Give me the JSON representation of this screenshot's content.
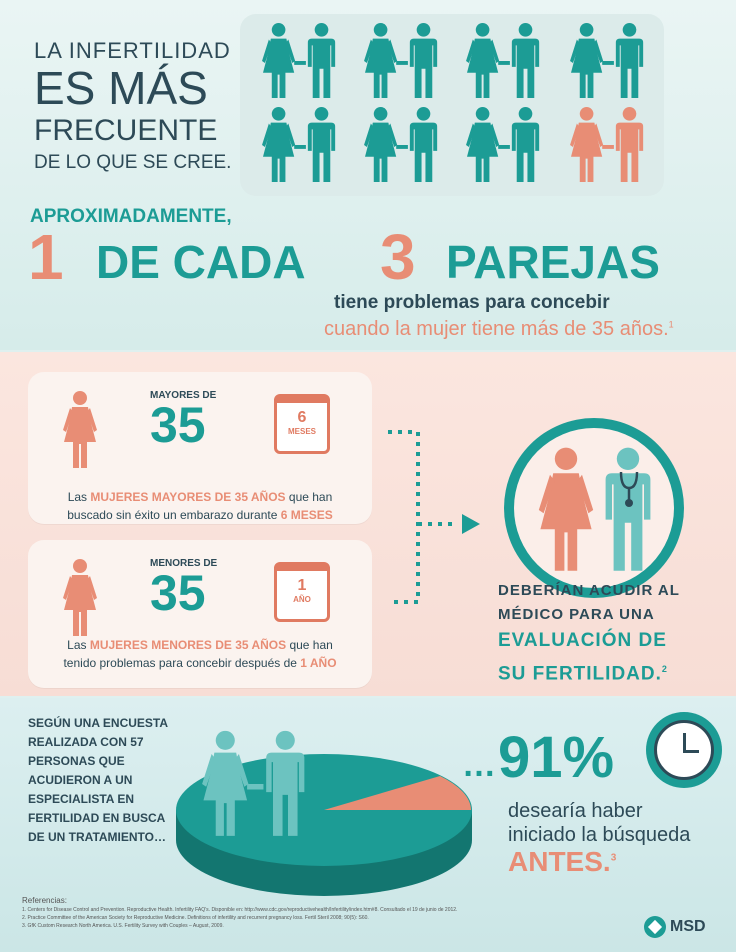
{
  "intro": {
    "line1": "LA INFERTILIDAD",
    "line2": "ES MÁS",
    "line3": "FRECUENTE",
    "line4": "DE LO QUE SE CREE."
  },
  "headline": {
    "approx": "APROXIMADAMENTE,",
    "num1": "1",
    "middle": "DE CADA",
    "num3": "3",
    "parejas": "PAREJAS",
    "sub1": "tiene problemas para concebir",
    "sub2": "cuando la mujer tiene más de 35 años.",
    "sub2_ref": "1"
  },
  "card1": {
    "label": "MAYORES DE",
    "age": "35",
    "cal_num": "6",
    "cal_unit": "MESES",
    "text_a": "Las ",
    "text_b": "MUJERES MAYORES DE 35 AÑOS",
    "text_c": " que han",
    "text_d": "buscado sin éxito un embarazo durante ",
    "text_e": "6 MESES"
  },
  "card2": {
    "label": "MENORES DE",
    "age": "35",
    "cal_num": "1",
    "cal_unit": "AÑO",
    "text_a": "Las ",
    "text_b": "MUJERES MENORES DE 35 AÑOS",
    "text_c": " que han",
    "text_d": "tenido problemas para concebir después de ",
    "text_e": "1 AÑO"
  },
  "advice": {
    "line1": "DEBERÍAN ACUDIR AL",
    "line2": "MÉDICO PARA UNA",
    "line3": "EVALUACIÓN DE",
    "line4": "SU FERTILIDAD.",
    "ref": "2"
  },
  "survey": {
    "lines": [
      "SEGÚN UNA ENCUESTA",
      "REALIZADA CON 57",
      "PERSONAS QUE",
      "ACUDIERON A UN",
      "ESPECIALISTA EN",
      "FERTILIDAD EN BUSCA",
      "DE UN TRATAMIENTO…"
    ],
    "dots": "…",
    "percent": "91%",
    "line1": "desearía haber",
    "line2": "iniciado la búsqueda",
    "antes": "ANTES.",
    "ref": "3"
  },
  "references": {
    "title": "Referencias:",
    "r1": "1. Centers for Disease Control and Prevention. Reproductive Health. Infertility FAQ’s. Disponible en: http://www.cdc.gov/reproductivehealth/Infertility/index.htm#8. Consultado el 19 de junio de 2012.",
    "r2": "2. Practice Committee of the American Society for Reproductive Medicine. Definitions of infertility and recurrent pregnancy loss. Fertil Steril 2008; 90(5): S60.",
    "r3": "3. GfK Custom Research North America. U.S. Fertility Survey with Couples – August, 2009."
  },
  "brand": {
    "name": "MSD"
  },
  "colors": {
    "teal": "#1c9c95",
    "salmon": "#e88d75",
    "dark": "#2d4a57"
  }
}
